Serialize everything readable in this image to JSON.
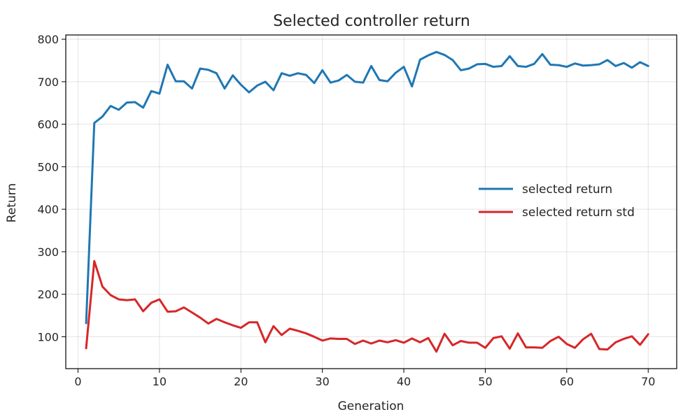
{
  "chart_data": {
    "type": "line",
    "title": "Selected controller return",
    "xlabel": "Generation",
    "ylabel": "Return",
    "xlim": [
      -1.5,
      73.5
    ],
    "ylim": [
      25,
      810
    ],
    "xticks": [
      0,
      10,
      20,
      30,
      40,
      50,
      60,
      70
    ],
    "yticks": [
      100,
      200,
      300,
      400,
      500,
      600,
      700,
      800
    ],
    "grid": true,
    "legend_position": "center-right",
    "x": [
      1,
      2,
      3,
      4,
      5,
      6,
      7,
      8,
      9,
      10,
      11,
      12,
      13,
      14,
      15,
      16,
      17,
      18,
      19,
      20,
      21,
      22,
      23,
      24,
      25,
      26,
      27,
      28,
      29,
      30,
      31,
      32,
      33,
      34,
      35,
      36,
      37,
      38,
      39,
      40,
      41,
      42,
      43,
      44,
      45,
      46,
      47,
      48,
      49,
      50,
      51,
      52,
      53,
      54,
      55,
      56,
      57,
      58,
      59,
      60,
      61,
      62,
      63,
      64,
      65,
      66,
      67,
      68,
      69,
      70
    ],
    "series": [
      {
        "name": "selected return",
        "color": "#1f77b4",
        "values": [
          132,
          603,
          618,
          643,
          634,
          651,
          652,
          639,
          678,
          672,
          740,
          701,
          701,
          684,
          731,
          728,
          720,
          684,
          715,
          693,
          675,
          691,
          700,
          680,
          720,
          714,
          720,
          716,
          697,
          727,
          698,
          703,
          716,
          700,
          698,
          737,
          704,
          701,
          721,
          735,
          689,
          752,
          762,
          770,
          763,
          751,
          727,
          731,
          741,
          742,
          735,
          737,
          760,
          737,
          735,
          742,
          765,
          740,
          739,
          735,
          743,
          738,
          739,
          741,
          751,
          737,
          744,
          733,
          746,
          737
        ]
      },
      {
        "name": "selected return std",
        "color": "#d62728",
        "values": [
          73,
          278,
          218,
          198,
          188,
          186,
          188,
          160,
          180,
          188,
          159,
          160,
          169,
          157,
          145,
          131,
          142,
          134,
          127,
          121,
          134,
          134,
          87,
          125,
          104,
          119,
          114,
          108,
          100,
          91,
          96,
          95,
          95,
          83,
          91,
          84,
          91,
          87,
          92,
          86,
          96,
          87,
          97,
          65,
          107,
          80,
          90,
          86,
          86,
          74,
          97,
          101,
          72,
          108,
          75,
          75,
          74,
          90,
          100,
          83,
          74,
          94,
          107,
          71,
          70,
          87,
          95,
          101,
          81,
          106
        ]
      }
    ]
  }
}
